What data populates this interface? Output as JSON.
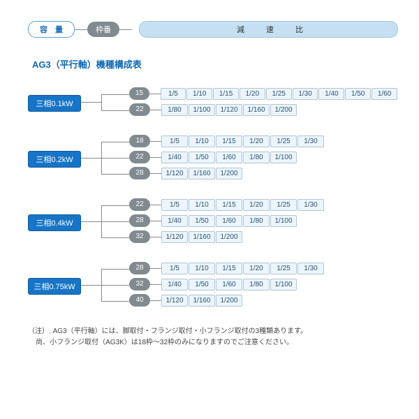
{
  "header": {
    "capacity": "容 量",
    "frame": "枠番",
    "ratio": "減 速 比"
  },
  "section_title": "AG3（平行軸）機種構成表",
  "groups": [
    {
      "capacity": "三相0.1kW",
      "frames": [
        {
          "num": "15",
          "ratios": [
            "1/5",
            "1/10",
            "1/15",
            "1/20",
            "1/25",
            "1/30",
            "1/40",
            "1/50",
            "1/60"
          ]
        },
        {
          "num": "22",
          "ratios": [
            "1/80",
            "1/100",
            "1/120",
            "1/160",
            "1/200"
          ]
        }
      ]
    },
    {
      "capacity": "三相0.2kW",
      "frames": [
        {
          "num": "18",
          "ratios": [
            "1/5",
            "1/10",
            "1/15",
            "1/20",
            "1/25",
            "1/30"
          ]
        },
        {
          "num": "22",
          "ratios": [
            "1/40",
            "1/50",
            "1/60",
            "1/80",
            "1/100"
          ]
        },
        {
          "num": "28",
          "ratios": [
            "1/120",
            "1/160",
            "1/200"
          ]
        }
      ]
    },
    {
      "capacity": "三相0.4kW",
      "frames": [
        {
          "num": "22",
          "ratios": [
            "1/5",
            "1/10",
            "1/15",
            "1/20",
            "1/25",
            "1/30"
          ]
        },
        {
          "num": "28",
          "ratios": [
            "1/40",
            "1/50",
            "1/60",
            "1/80",
            "1/100"
          ]
        },
        {
          "num": "32",
          "ratios": [
            "1/120",
            "1/160",
            "1/200"
          ]
        }
      ]
    },
    {
      "capacity": "三相0.75kW",
      "frames": [
        {
          "num": "28",
          "ratios": [
            "1/5",
            "1/10",
            "1/15",
            "1/20",
            "1/25",
            "1/30"
          ]
        },
        {
          "num": "32",
          "ratios": [
            "1/40",
            "1/50",
            "1/60",
            "1/80",
            "1/100"
          ]
        },
        {
          "num": "40",
          "ratios": [
            "1/120",
            "1/160",
            "1/200"
          ]
        }
      ]
    }
  ],
  "note_label": "（注）.",
  "note_line1": "AG3（平行軸）には、脚取付・フランジ取付・小フランジ取付の3種類あります。",
  "note_line2": "尚、小フランジ取付（AG3K）は18枠～32枠のみになりますのでご注意ください。",
  "colors": {
    "blue_stroke": "#5a9fd4",
    "blue_fill": "#1775c7",
    "gray_fill": "#808a90",
    "lightblue_fill": "#c4e0f2",
    "ratio_bg": "#ecf5fc",
    "ratio_border": "#b0c4d6",
    "line": "#888"
  }
}
